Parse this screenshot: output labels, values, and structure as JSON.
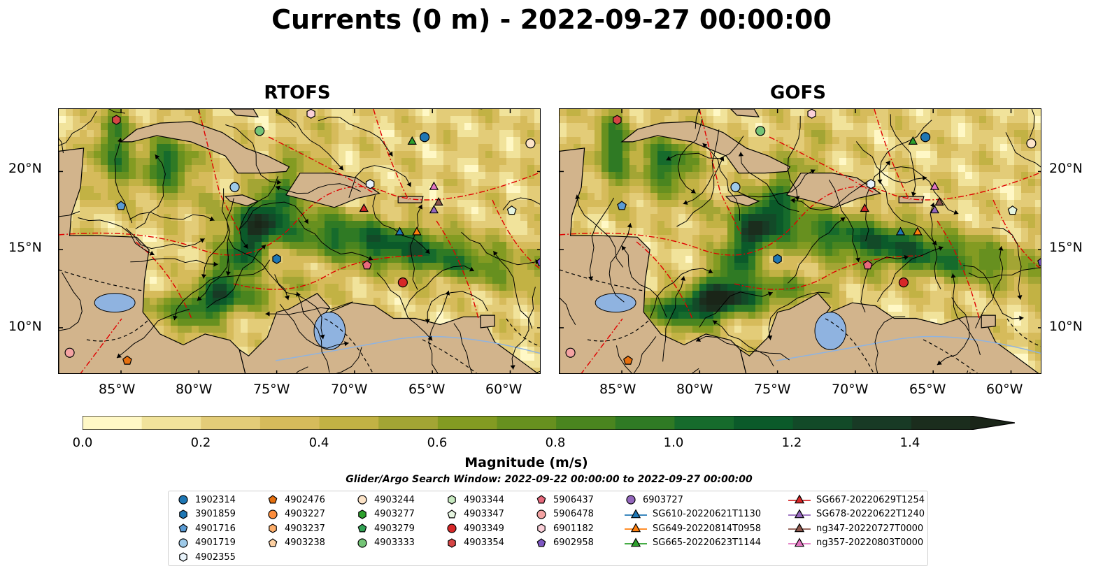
{
  "title": "Currents (0 m) - 2022-09-27 00:00:00",
  "panels": [
    {
      "title": "RTOFS",
      "variant": 0
    },
    {
      "title": "GOFS",
      "variant": 1
    }
  ],
  "lat_labels": [
    "20°N",
    "15°N",
    "10°N"
  ],
  "lon_labels": [
    "85°W",
    "80°W",
    "75°W",
    "70°W",
    "65°W",
    "60°W"
  ],
  "map_extent": {
    "lon_min": -89,
    "lon_max": -58,
    "lat_min": 7,
    "lat_max": 24
  },
  "colorbar": {
    "label": "Magnitude (m/s)",
    "ticks": [
      "0.0",
      "0.2",
      "0.4",
      "0.6",
      "0.8",
      "1.0",
      "1.2",
      "1.4"
    ],
    "colors": [
      "#fff8c6",
      "#f1e39b",
      "#e3cc78",
      "#d6bb5b",
      "#c2b244",
      "#a3a534",
      "#839b22",
      "#67901f",
      "#4a851f",
      "#2f7a24",
      "#166b2c",
      "#0b5a2a",
      "#124a28",
      "#183a25",
      "#1b2d1d",
      "#1a2518"
    ]
  },
  "search_window": "Glider/Argo Search Window: 2022-09-22 00:00:00 to 2022-09-27 00:00:00",
  "legend": [
    {
      "label": "1902314",
      "marker": "circle",
      "color": "#1f77b4"
    },
    {
      "label": "3901859",
      "marker": "hexagon",
      "color": "#1f77b4"
    },
    {
      "label": "4901716",
      "marker": "pentagon",
      "color": "#5a9bd4"
    },
    {
      "label": "4901719",
      "marker": "circle",
      "color": "#9ecae9"
    },
    {
      "label": "4902355",
      "marker": "hexagon",
      "color": "#e8f3fb"
    },
    {
      "label": "4902476",
      "marker": "pentagon",
      "color": "#e6700f"
    },
    {
      "label": "4903227",
      "marker": "circle",
      "color": "#fd8d3c"
    },
    {
      "label": "4903237",
      "marker": "hexagon",
      "color": "#fdae6b"
    },
    {
      "label": "4903238",
      "marker": "pentagon",
      "color": "#fdd0a2"
    },
    {
      "label": "4903244",
      "marker": "circle",
      "color": "#fde4c8"
    },
    {
      "label": "4903277",
      "marker": "hexagon",
      "color": "#2ca02c"
    },
    {
      "label": "4903279",
      "marker": "pentagon",
      "color": "#31a354"
    },
    {
      "label": "4903333",
      "marker": "circle",
      "color": "#74c476"
    },
    {
      "label": "4903344",
      "marker": "hexagon",
      "color": "#c7e9c0"
    },
    {
      "label": "4903347",
      "marker": "pentagon",
      "color": "#e5f5e0"
    },
    {
      "label": "4903349",
      "marker": "circle",
      "color": "#d62728"
    },
    {
      "label": "4903354",
      "marker": "hexagon",
      "color": "#d64545"
    },
    {
      "label": "5906437",
      "marker": "pentagon",
      "color": "#e7697c"
    },
    {
      "label": "5906478",
      "marker": "circle",
      "color": "#f4a3a3"
    },
    {
      "label": "6901182",
      "marker": "hexagon",
      "color": "#fbd0d9"
    },
    {
      "label": "6902958",
      "marker": "pentagon",
      "color": "#7e57c2"
    },
    {
      "label": "6903727",
      "marker": "circle",
      "color": "#9467bd"
    },
    {
      "label": "SG610-20220621T1130",
      "marker": "triangle-line",
      "color": "#1f77b4"
    },
    {
      "label": "SG649-20220814T0958",
      "marker": "triangle-line",
      "color": "#ff7f0e"
    },
    {
      "label": "SG665-20220623T1144",
      "marker": "triangle-line",
      "color": "#2ca02c"
    },
    {
      "label": "SG667-20220629T1254",
      "marker": "triangle-line",
      "color": "#d62728"
    },
    {
      "label": "SG678-20220622T1240",
      "marker": "triangle-line",
      "color": "#9467bd"
    },
    {
      "label": "ng347-20220727T0000",
      "marker": "triangle-line",
      "color": "#8c564b"
    },
    {
      "label": "ng357-20220803T0000",
      "marker": "triangle-line",
      "color": "#e377c2"
    }
  ],
  "markers": [
    {
      "id": "4903354",
      "shape": "hexagon",
      "color": "#d64545",
      "lon": -85.3,
      "lat": 23.3
    },
    {
      "id": "4903333",
      "shape": "circle",
      "color": "#74c476",
      "lon": -76.1,
      "lat": 22.6
    },
    {
      "id": "6901182",
      "shape": "hexagon",
      "color": "#fbd0d9",
      "lon": -72.8,
      "lat": 23.7
    },
    {
      "id": "1902314",
      "shape": "circle",
      "color": "#1f77b4",
      "lon": -65.5,
      "lat": 22.2
    },
    {
      "id": "SG665-20220623T1144",
      "shape": "triangle",
      "color": "#2ca02c",
      "lon": -66.3,
      "lat": 21.9
    },
    {
      "id": "4903244",
      "shape": "circle",
      "color": "#fde4c8",
      "lon": -58.7,
      "lat": 21.8
    },
    {
      "id": "4901719",
      "shape": "circle",
      "color": "#9ecae9",
      "lon": -77.7,
      "lat": 19.0
    },
    {
      "id": "4902355",
      "shape": "hexagon",
      "color": "#e8f3fb",
      "lon": -69.0,
      "lat": 19.2
    },
    {
      "id": "ng357-20220803T0000",
      "shape": "triangle",
      "color": "#e377c2",
      "lon": -64.9,
      "lat": 19.0
    },
    {
      "id": "4901716",
      "shape": "pentagon",
      "color": "#5a9bd4",
      "lon": -85.0,
      "lat": 17.8
    },
    {
      "id": "SG667-20220629T1254",
      "shape": "triangle",
      "color": "#d62728",
      "lon": -69.4,
      "lat": 17.6
    },
    {
      "id": "ng347-20220727T0000",
      "shape": "triangle",
      "color": "#8c564b",
      "lon": -64.6,
      "lat": 18.0
    },
    {
      "id": "SG678-20220622T1240",
      "shape": "triangle",
      "color": "#9467bd",
      "lon": -64.9,
      "lat": 17.5
    },
    {
      "id": "4903347",
      "shape": "pentagon",
      "color": "#e5f5e0",
      "lon": -59.9,
      "lat": 17.5
    },
    {
      "id": "SG610-20220621T1130",
      "shape": "triangle",
      "color": "#1f77b4",
      "lon": -67.1,
      "lat": 16.1
    },
    {
      "id": "SG649-20220814T0958",
      "shape": "triangle",
      "color": "#ff7f0e",
      "lon": -66.0,
      "lat": 16.1
    },
    {
      "id": "3901859",
      "shape": "hexagon",
      "color": "#1f77b4",
      "lon": -75.0,
      "lat": 14.4
    },
    {
      "id": "5906437",
      "shape": "pentagon",
      "color": "#e7697c",
      "lon": -69.2,
      "lat": 14.0
    },
    {
      "id": "6902958",
      "shape": "pentagon",
      "color": "#7e57c2",
      "lon": -58.0,
      "lat": 14.2
    },
    {
      "id": "4903349",
      "shape": "circle",
      "color": "#d62728",
      "lon": -66.9,
      "lat": 12.9
    },
    {
      "id": "5906478",
      "shape": "circle",
      "color": "#f4a3a3",
      "lon": -88.3,
      "lat": 8.4
    },
    {
      "id": "4902476",
      "shape": "pentagon",
      "color": "#e6700f",
      "lon": -84.6,
      "lat": 7.9
    }
  ]
}
